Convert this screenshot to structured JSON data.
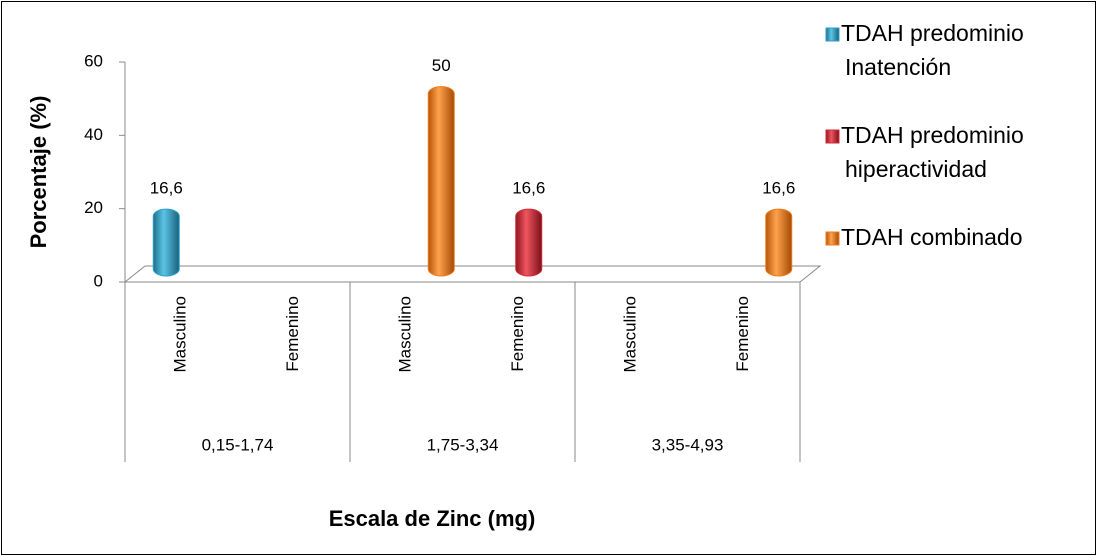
{
  "chart_data": {
    "type": "bar",
    "x_label": "Escala de Zinc (mg)",
    "y_label": "Porcentaje (%)",
    "categories": [
      "Masculino",
      "Femenino",
      "Masculino",
      "Femenino",
      "Masculino",
      "Femenino"
    ],
    "groups": [
      "0,15-1,74",
      "1,75-3,34",
      "3,35-4,93"
    ],
    "series": [
      {
        "name": "TDAH predominio Inatención",
        "legend_lines": [
          "TDAH predominio",
          "Inatención"
        ],
        "color": "#2e9fc6",
        "values": [
          16.6,
          null,
          null,
          null,
          null,
          null
        ],
        "value_labels": [
          "16,6",
          null,
          null,
          null,
          null,
          null
        ]
      },
      {
        "name": "TDAH predominio hiperactividad",
        "legend_lines": [
          "TDAH predominio",
          "hiperactividad"
        ],
        "color": "#d42a35",
        "values": [
          null,
          null,
          null,
          16.6,
          null,
          null
        ],
        "value_labels": [
          null,
          null,
          null,
          "16,6",
          null,
          null
        ]
      },
      {
        "name": "TDAH combinado",
        "legend_lines": [
          "TDAH combinado"
        ],
        "color": "#ef7a1a",
        "values": [
          null,
          null,
          50,
          null,
          null,
          16.6
        ],
        "value_labels": [
          null,
          null,
          "50",
          null,
          null,
          "16,6"
        ]
      }
    ],
    "ylim": [
      0,
      60
    ],
    "yticks": [
      0,
      20,
      40,
      60
    ],
    "legend": "right"
  }
}
